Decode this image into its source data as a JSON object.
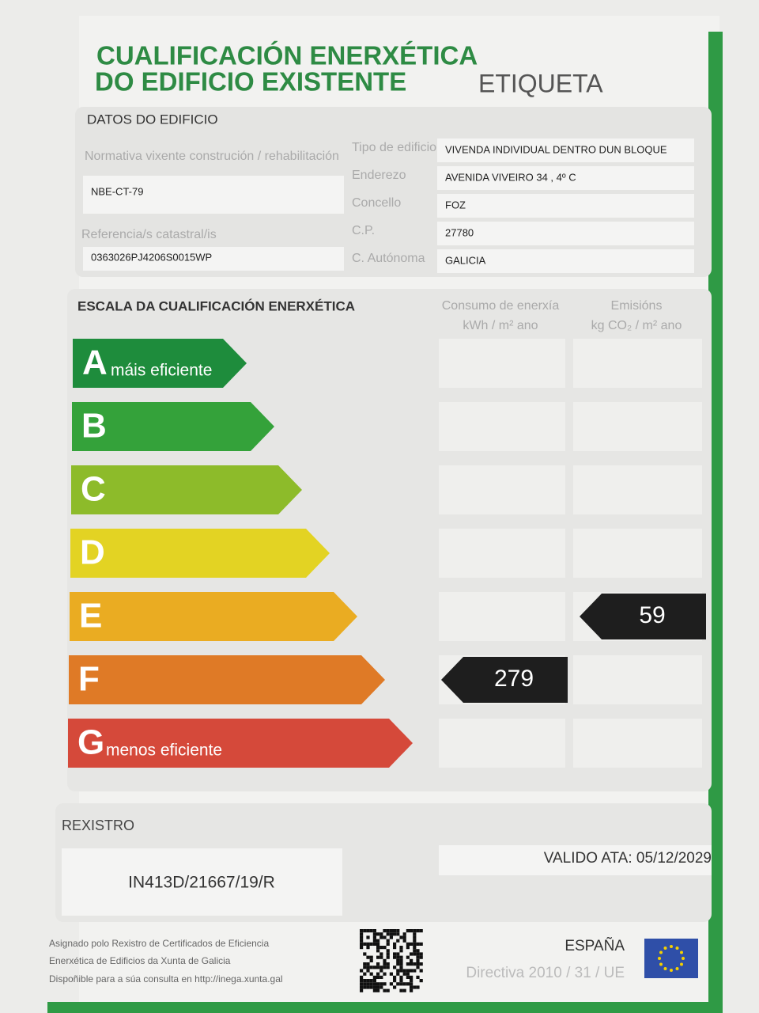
{
  "header": {
    "title_line1": "CUALIFICACIÓN ENERXÉTICA",
    "title_line2": "DO EDIFICIO EXISTENTE",
    "label": "ETIQUETA"
  },
  "building": {
    "heading": "DATOS DO EDIFICIO",
    "normativa": {
      "label": "Normativa vixente construción / rehabilitación",
      "value": "NBE-CT-79"
    },
    "referencia": {
      "label": "Referencia/s catastral/is",
      "value": "0363026PJ4206S0015WP"
    },
    "fields": [
      {
        "label": "Tipo de edificio",
        "value": "VIVENDA INDIVIDUAL DENTRO DUN BLOQUE"
      },
      {
        "label": "Enderezo",
        "value": "AVENIDA VIVEIRO 34 , 4º C"
      },
      {
        "label": "Concello",
        "value": "FOZ"
      },
      {
        "label": "C.P.",
        "value": "27780"
      },
      {
        "label": "C. Autónoma",
        "value": "GALICIA"
      }
    ]
  },
  "scale": {
    "heading": "ESCALA DA CUALIFICACIÓN ENERXÉTICA",
    "consumption_header": {
      "title": "Consumo de enerxía",
      "unit": "kWh / m² ano"
    },
    "emissions_header": {
      "title": "Emisións",
      "unit": "kg CO₂ / m² ano"
    },
    "grades": [
      {
        "letter": "A",
        "caption": "máis eficiente",
        "color": "#1e8c3c"
      },
      {
        "letter": "B",
        "color": "#34a23a"
      },
      {
        "letter": "C",
        "color": "#8dbb2a"
      },
      {
        "letter": "D",
        "color": "#e3d323"
      },
      {
        "letter": "E",
        "color": "#eaac22",
        "emissions": 59
      },
      {
        "letter": "F",
        "color": "#df7a26",
        "consumption": 279
      },
      {
        "letter": "G",
        "caption": "menos eficiente",
        "color": "#d5493a"
      }
    ]
  },
  "registry": {
    "heading": "REXISTRO",
    "number": "IN413D/21667/19/R",
    "valid_until": "VALIDO ATA: 05/12/2029"
  },
  "footer": {
    "note": [
      "Asignado polo Rexistro de Certificados de Eficiencia",
      "Enerxética de Edificios da Xunta de Galicia",
      "Dispoñible para a súa consulta en http://inega.xunta.gal"
    ],
    "country": "ESPAÑA",
    "directive": "Directiva 2010 / 31 / UE"
  }
}
